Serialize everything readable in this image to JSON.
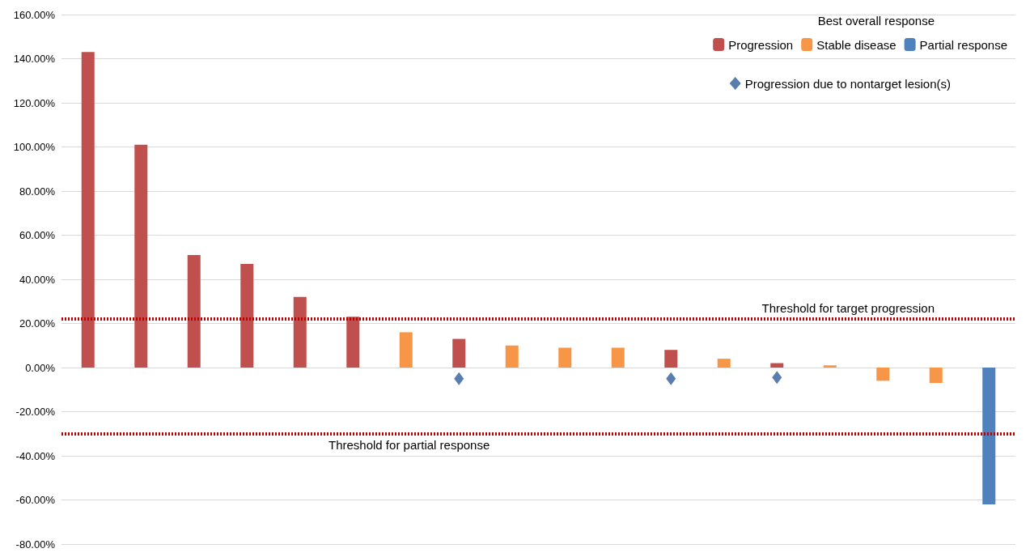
{
  "chart_data": {
    "type": "bar",
    "stacked": true,
    "legend_title": "Best overall response",
    "legend": "top right",
    "grid": "y",
    "categories": [
      null,
      null,
      null,
      null,
      null,
      null,
      null,
      null,
      null,
      null,
      null,
      null,
      null,
      null,
      null,
      null,
      null,
      null
    ],
    "ylim": [
      -80,
      160
    ],
    "yticks": [
      {
        "value": -80,
        "label": "-80.00%"
      },
      {
        "value": -60,
        "label": "-60.00%"
      },
      {
        "value": -40,
        "label": "-40.00%"
      },
      {
        "value": -20,
        "label": "-20.00%"
      },
      {
        "value": 0,
        "label": "0.00%"
      },
      {
        "value": 20,
        "label": "20.00%"
      },
      {
        "value": 40,
        "label": "40.00%"
      },
      {
        "value": 60,
        "label": "60.00%"
      },
      {
        "value": 80,
        "label": "80.00%"
      },
      {
        "value": 100,
        "label": "100.00%"
      },
      {
        "value": 120,
        "label": "120.00%"
      },
      {
        "value": 140,
        "label": "140.00%"
      },
      {
        "value": 160,
        "label": "160.00%"
      }
    ],
    "series": [
      {
        "name": "Progression",
        "color": "#c0504d",
        "values": [
          143,
          101,
          51,
          47,
          32,
          23,
          null,
          13,
          null,
          null,
          null,
          8,
          null,
          2,
          null,
          null,
          null,
          null
        ]
      },
      {
        "name": "Stable disease",
        "color": "#f79646",
        "values": [
          null,
          null,
          null,
          null,
          null,
          null,
          16,
          null,
          10,
          9,
          9,
          null,
          4,
          null,
          1,
          -6,
          -7,
          null
        ]
      },
      {
        "name": "Partial response",
        "color": "#4f81bd",
        "values": [
          null,
          null,
          null,
          null,
          null,
          null,
          null,
          null,
          null,
          null,
          null,
          null,
          null,
          null,
          null,
          null,
          null,
          -62
        ]
      },
      {
        "name": "Progression due to nontarget lesion(s)",
        "type": "scatter",
        "marker": "diamond",
        "color": "#2e5c9a",
        "values": [
          null,
          null,
          null,
          null,
          null,
          null,
          null,
          -5,
          null,
          null,
          null,
          -5,
          null,
          -4.5,
          null,
          null,
          null,
          null
        ]
      }
    ],
    "ref_lines": [
      {
        "axis": "y",
        "value": 22,
        "label": "Threshold for target progression",
        "color": "#c00000",
        "line_style": "dotted"
      },
      {
        "axis": "y",
        "value": -30,
        "label": "Threshold for partial response",
        "color": "#c00000",
        "line_style": "dotted"
      }
    ]
  }
}
